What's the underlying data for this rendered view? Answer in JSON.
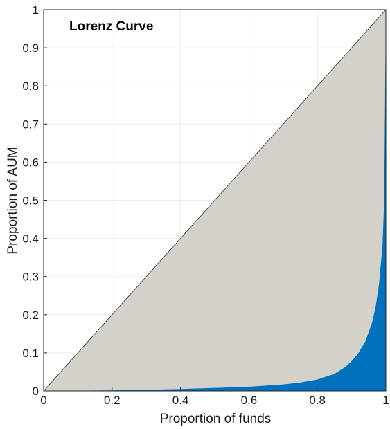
{
  "chart_data": {
    "type": "area",
    "title": "",
    "annotation": "Lorenz Curve",
    "xlabel": "Proportion of funds",
    "ylabel": "Proportion of AUM",
    "xlim": [
      0,
      1
    ],
    "ylim": [
      0,
      1
    ],
    "grid": true,
    "legend": "none",
    "xticks": [
      0,
      0.2,
      0.4,
      0.6,
      0.8,
      1
    ],
    "xtick_labels": [
      "0",
      "0.2",
      "0.4",
      "0.6",
      "0.8",
      "1"
    ],
    "yticks": [
      0,
      0.1,
      0.2,
      0.3,
      0.4,
      0.5,
      0.6,
      0.7,
      0.8,
      0.9,
      1
    ],
    "ytick_labels": [
      "0",
      "0.1",
      "0.2",
      "0.3",
      "0.4",
      "0.5",
      "0.6",
      "0.7",
      "0.8",
      "0.9",
      "1"
    ],
    "series": [
      {
        "kind": "equality-line",
        "x": [
          0,
          1
        ],
        "y": [
          0,
          1
        ],
        "color": "#d4d0ca"
      },
      {
        "kind": "lorenz-curve",
        "x": [
          0,
          0.1,
          0.2,
          0.3,
          0.4,
          0.5,
          0.6,
          0.7,
          0.75,
          0.8,
          0.85,
          0.88,
          0.9,
          0.92,
          0.94,
          0.96,
          0.97,
          0.98,
          0.99,
          0.995,
          1
        ],
        "y": [
          0,
          0.0005,
          0.0015,
          0.003,
          0.005,
          0.008,
          0.011,
          0.017,
          0.022,
          0.03,
          0.045,
          0.062,
          0.078,
          0.1,
          0.13,
          0.18,
          0.22,
          0.28,
          0.38,
          0.5,
          1
        ],
        "color": "#0072bd"
      }
    ]
  }
}
